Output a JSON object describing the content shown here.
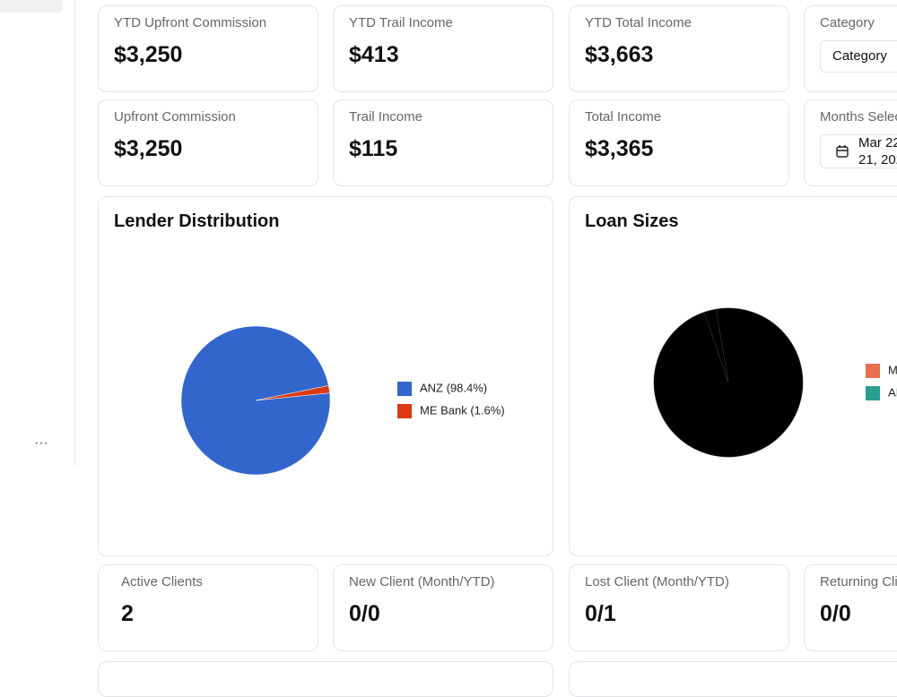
{
  "ytd_cards": [
    {
      "label": "YTD Upfront Commission",
      "value": "$3,250"
    },
    {
      "label": "YTD Trail Income",
      "value": "$413"
    },
    {
      "label": "YTD Total Income",
      "value": "$3,663"
    }
  ],
  "category_filter": {
    "label": "Category",
    "placeholder": "Category"
  },
  "month_cards": [
    {
      "label": "Upfront Commission",
      "value": "$3,250"
    },
    {
      "label": "Trail Income",
      "value": "$115"
    },
    {
      "label": "Total Income",
      "value": "$3,365"
    }
  ],
  "months_filter": {
    "label": "Months Selec",
    "date_line1": "Mar 22",
    "date_line2": "21, 202"
  },
  "lender_chart": {
    "type": "pie",
    "title": "Lender Distribution",
    "categories": [
      "ANZ (98.4%)",
      "ME Bank (1.6%)"
    ],
    "values": [
      98.4,
      1.6
    ],
    "colors": [
      "#3366cc",
      "#dc3912"
    ]
  },
  "loan_chart": {
    "type": "pie",
    "title": "Loan Sizes",
    "categories": [
      "M",
      "AI"
    ],
    "values": [
      97.4,
      2.6
    ],
    "colors": [
      "#e8704f",
      "#2a9d8f"
    ],
    "slice_color": "#000000"
  },
  "client_cards": [
    {
      "label": "Active Clients",
      "value": "2"
    },
    {
      "label": "New Client (Month/YTD)",
      "value": "0/0"
    },
    {
      "label": "Lost Client (Month/YTD)",
      "value": "0/1"
    },
    {
      "label": "Returning Cli",
      "value": "0/0"
    }
  ]
}
